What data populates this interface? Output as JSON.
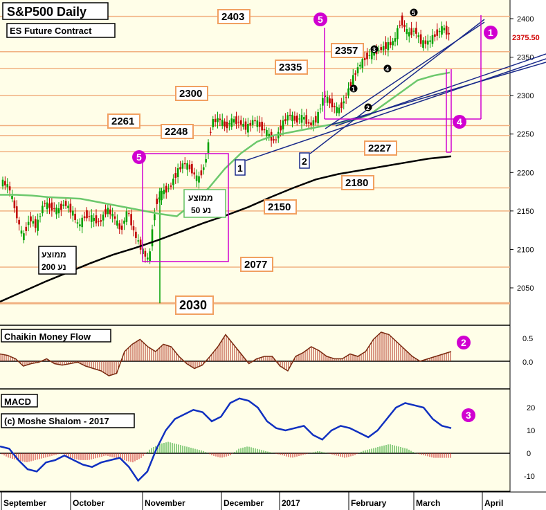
{
  "chart_data": {
    "type": "candlestick",
    "title": "S&P500 Daily",
    "subtitle": "ES Future Contract",
    "last_price": "2375.50",
    "y_ticks": [
      "2400",
      "2350",
      "2300",
      "2250",
      "2200",
      "2150",
      "2100",
      "2050"
    ],
    "x_labels": [
      "September",
      "October",
      "November",
      "December",
      "2017",
      "February",
      "March",
      "April"
    ],
    "levels": [
      {
        "value": 2403,
        "label": "2403"
      },
      {
        "value": 2357,
        "label": "2357"
      },
      {
        "value": 2335,
        "label": "2335"
      },
      {
        "value": 2300,
        "label": "2300"
      },
      {
        "value": 2261,
        "label": "2261"
      },
      {
        "value": 2248,
        "label": "2248"
      },
      {
        "value": 2227,
        "label": "2227"
      },
      {
        "value": 2180,
        "label": "2180"
      },
      {
        "value": 2150,
        "label": "2150"
      },
      {
        "value": 2077,
        "label": "2077"
      },
      {
        "value": 2030,
        "label": "2030"
      }
    ],
    "ma50_label": [
      "ממוצע",
      "נע 50"
    ],
    "ma200_label": [
      "ממוצע",
      "נע 200"
    ],
    "ma50_values": [
      2171,
      2171,
      2170,
      2168,
      2167,
      2166,
      2162,
      2158,
      2154,
      2150,
      2146,
      2143,
      2160,
      2180,
      2205,
      2225,
      2240,
      2248,
      2252,
      2256,
      2260,
      2264,
      2268,
      2275,
      2290,
      2305,
      2320,
      2326,
      2330
    ],
    "ma200_values": [
      2032,
      2045,
      2058,
      2070,
      2082,
      2093,
      2102,
      2112,
      2123,
      2134,
      2144,
      2155,
      2168,
      2180,
      2191,
      2198,
      2203,
      2208,
      2213,
      2218,
      2221
    ],
    "price_path": [
      2188,
      2182,
      2150,
      2115,
      2140,
      2130,
      2160,
      2155,
      2150,
      2160,
      2150,
      2130,
      2145,
      2140,
      2135,
      2152,
      2143,
      2125,
      2150,
      2120,
      2100,
      2085,
      2160,
      2175,
      2180,
      2200,
      2212,
      2205,
      2190,
      2210,
      2265,
      2270,
      2260,
      2268,
      2265,
      2258,
      2268,
      2260,
      2250,
      2240,
      2262,
      2275,
      2268,
      2272,
      2262,
      2270,
      2300,
      2290,
      2280,
      2295,
      2320,
      2338,
      2350,
      2355,
      2360,
      2365,
      2370,
      2398,
      2380,
      2385,
      2368,
      2370,
      2380,
      2388,
      2378
    ],
    "wave_labels": [
      "5",
      "5",
      "1",
      "2",
      "3",
      "4",
      "5"
    ],
    "box_labels": [
      "1",
      "2"
    ],
    "panel_numbers": [
      "1",
      "2",
      "3",
      "4"
    ],
    "cmf": {
      "title": "Chaikin Money Flow",
      "ticks": [
        "0.5",
        "0.0"
      ],
      "values": [
        0.15,
        0.12,
        0.05,
        -0.1,
        -0.05,
        -0.02,
        0.05,
        -0.05,
        -0.08,
        -0.05,
        -0.02,
        -0.1,
        -0.15,
        -0.2,
        -0.3,
        -0.25,
        0.2,
        0.35,
        0.45,
        0.3,
        0.2,
        0.35,
        0.3,
        0.1,
        -0.05,
        -0.15,
        -0.08,
        0.1,
        0.3,
        0.55,
        0.35,
        0.15,
        -0.05,
        0.05,
        0.1,
        0.1,
        -0.1,
        -0.2,
        0.1,
        0.18,
        0.3,
        0.22,
        0.1,
        0.05,
        0.05,
        0.15,
        0.1,
        0.2,
        0.45,
        0.6,
        0.55,
        0.4,
        0.25,
        0.1,
        0.0,
        0.05,
        0.1,
        0.15,
        0.2
      ]
    },
    "macd": {
      "title": "MACD",
      "copyright": "(c) Moshe Shalom - 2017",
      "ticks": [
        "20",
        "10",
        "0",
        "-10"
      ],
      "line": [
        3,
        2,
        -3,
        -7,
        -8,
        -4,
        -3,
        -1,
        -3,
        -5,
        -6,
        -4,
        -3,
        -2,
        -6,
        -12,
        -8,
        2,
        10,
        15,
        17,
        19,
        18,
        14,
        16,
        22,
        24,
        23,
        20,
        14,
        11,
        10,
        11,
        12,
        8,
        6,
        10,
        12,
        11,
        9,
        7,
        10,
        15,
        20,
        22,
        21,
        20,
        15,
        12,
        11
      ],
      "histogram": [
        0,
        -2,
        -3,
        -4,
        -3,
        -2,
        -1,
        0,
        -2,
        -3,
        -3,
        -2,
        -1,
        -2,
        -3,
        -4,
        -2,
        2,
        4,
        5,
        4,
        3,
        2,
        1,
        -1,
        -2,
        -1,
        2,
        3,
        2,
        1,
        0,
        -1,
        -2,
        -1,
        0,
        1,
        0,
        -1,
        -2,
        -1,
        1,
        2,
        3,
        4,
        3,
        2,
        0,
        -1,
        -2,
        -2,
        -2
      ]
    }
  }
}
